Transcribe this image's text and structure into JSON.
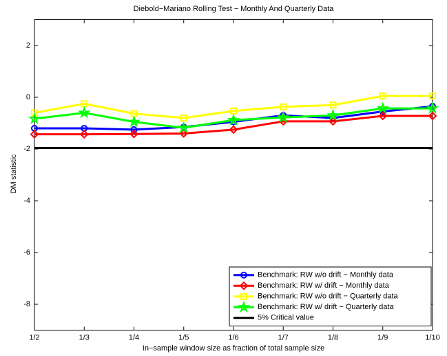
{
  "chart_data": {
    "type": "line",
    "title": "Diebold−Mariano Rolling Test − Monthly And Quarterly Data",
    "xlabel": "In−sample window size as fraction of total sample size",
    "ylabel": "DM statistic",
    "categories": [
      "1/2",
      "1/3",
      "1/4",
      "1/5",
      "1/6",
      "1/7",
      "1/8",
      "1/9",
      "1/10"
    ],
    "ylim": [
      -9,
      3
    ],
    "yticks": [
      2,
      0,
      -2,
      -4,
      -6,
      -8
    ],
    "legend": "lower right",
    "series": [
      {
        "name": "Benchmark: RW w/o drift − Monthly data",
        "color": "#0000ff",
        "marker": "circle",
        "values": [
          -1.2,
          -1.2,
          -1.25,
          -1.15,
          -0.95,
          -0.7,
          -0.8,
          -0.55,
          -0.35
        ]
      },
      {
        "name": "Benchmark: RW w/ drift − Monthly data",
        "color": "#ff0000",
        "marker": "diamond",
        "values": [
          -1.43,
          -1.43,
          -1.42,
          -1.4,
          -1.25,
          -0.93,
          -0.93,
          -0.72,
          -0.72
        ]
      },
      {
        "name": "Benchmark: RW w/o drift − Quarterly data",
        "color": "#ffff00",
        "marker": "square",
        "values": [
          -0.6,
          -0.25,
          -0.63,
          -0.8,
          -0.53,
          -0.37,
          -0.3,
          0.05,
          0.05
        ]
      },
      {
        "name": "Benchmark: RW w/ drift − Quarterly data",
        "color": "#00ff00",
        "marker": "star",
        "values": [
          -0.83,
          -0.6,
          -0.95,
          -1.18,
          -0.88,
          -0.78,
          -0.7,
          -0.43,
          -0.43
        ]
      },
      {
        "name": "5% Critical value",
        "color": "#000000",
        "marker": "none",
        "values": [
          -1.96,
          -1.96,
          -1.96,
          -1.96,
          -1.96,
          -1.96,
          -1.96,
          -1.96,
          -1.96
        ]
      }
    ]
  }
}
